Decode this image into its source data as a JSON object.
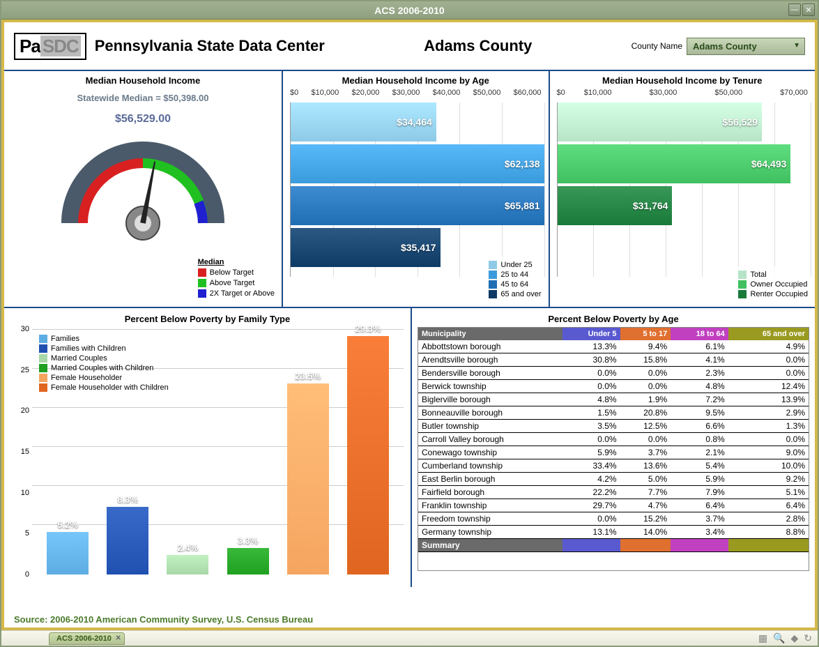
{
  "window": {
    "title": "ACS 2006-2010"
  },
  "header": {
    "logo_pa": "Pa",
    "logo_sdc": "SDC",
    "org_title": "Pennsylvania State Data Center",
    "county_heading": "Adams County",
    "county_label": "County Name",
    "county_selected": "Adams County"
  },
  "gauge": {
    "title": "Median Household Income",
    "subtitle": "Statewide Median = $50,398.00",
    "value_label": "$56,529.00",
    "value": 56529,
    "target": 50398,
    "min": 0,
    "max": 100796,
    "colors": {
      "below": "#d92020",
      "above": "#20c020",
      "double": "#2020d0"
    },
    "legend_title": "Median",
    "legend": [
      {
        "color": "#d92020",
        "label": "Below Target"
      },
      {
        "color": "#20c020",
        "label": "Above Target"
      },
      {
        "color": "#2020d0",
        "label": "2X Target or Above"
      }
    ]
  },
  "income_by_age": {
    "title": "Median Household Income by Age",
    "type": "bar-horizontal",
    "xmax": 60000,
    "xtick_step": 10000,
    "ticks": [
      "$0",
      "$10,000",
      "$20,000",
      "$30,000",
      "$40,000",
      "$50,000",
      "$60,000"
    ],
    "bars": [
      {
        "label": "Under 25",
        "value": 34464,
        "display": "$34,464",
        "color": "#8ecae6"
      },
      {
        "label": "25 to 44",
        "value": 62138,
        "display": "$62,138",
        "color": "#3a9bdc"
      },
      {
        "label": "45 to 64",
        "value": 65881,
        "display": "$65,881",
        "color": "#1f6db3"
      },
      {
        "label": "65 and over",
        "value": 35417,
        "display": "$35,417",
        "color": "#0d3b66"
      }
    ]
  },
  "income_by_tenure": {
    "title": "Median Household Income by Tenure",
    "type": "bar-horizontal",
    "xmax": 70000,
    "xtick_step": 10000,
    "ticks": [
      "$0",
      "$10,000",
      "",
      "$30,000",
      "",
      "$50,000",
      "",
      "$70,000"
    ],
    "bars": [
      {
        "label": "Total",
        "value": 56529,
        "display": "$56,529",
        "color": "#b7e4c7"
      },
      {
        "label": "Owner Occupied",
        "value": 64493,
        "display": "$64,493",
        "color": "#40c060"
      },
      {
        "label": "Renter Occupied",
        "value": 31764,
        "display": "$31,764",
        "color": "#1a7a3a"
      }
    ]
  },
  "poverty_family": {
    "title": "Percent Below Poverty by Family Type",
    "type": "bar-vertical",
    "ymax": 30,
    "ytick_step": 5,
    "bars": [
      {
        "label": "Families",
        "value": 5.2,
        "display": "5.2%",
        "color": "#5dade2"
      },
      {
        "label": "Families with Children",
        "value": 8.3,
        "display": "8.3%",
        "color": "#2050b0"
      },
      {
        "label": "Married Couples",
        "value": 2.4,
        "display": "2.4%",
        "color": "#a8d8a8"
      },
      {
        "label": "Married Couples with Children",
        "value": 3.3,
        "display": "3.3%",
        "color": "#20a020"
      },
      {
        "label": "Female Householder",
        "value": 23.5,
        "display": "23.5%",
        "color": "#f5a560"
      },
      {
        "label": "Female Householder with Children",
        "value": 29.3,
        "display": "29.3%",
        "color": "#e06520"
      }
    ]
  },
  "poverty_age": {
    "title": "Percent Below Poverty by Age",
    "columns": [
      "Municipality",
      "Under 5",
      "5 to 17",
      "18 to 64",
      "65 and over"
    ],
    "header_colors": [
      "#6a6a6a",
      "#5a5ad0",
      "#e07030",
      "#c040c0",
      "#9a9a20"
    ],
    "rows": [
      [
        "Abbottstown borough",
        "13.3%",
        "9.4%",
        "6.1%",
        "4.9%"
      ],
      [
        "Arendtsville borough",
        "30.8%",
        "15.8%",
        "4.1%",
        "0.0%"
      ],
      [
        "Bendersville borough",
        "0.0%",
        "0.0%",
        "2.3%",
        "0.0%"
      ],
      [
        "Berwick township",
        "0.0%",
        "0.0%",
        "4.8%",
        "12.4%"
      ],
      [
        "Biglerville borough",
        "4.8%",
        "1.9%",
        "7.2%",
        "13.9%"
      ],
      [
        "Bonneauville borough",
        "1.5%",
        "20.8%",
        "9.5%",
        "2.9%"
      ],
      [
        "Butler township",
        "3.5%",
        "12.5%",
        "6.6%",
        "1.3%"
      ],
      [
        "Carroll Valley borough",
        "0.0%",
        "0.0%",
        "0.8%",
        "0.0%"
      ],
      [
        "Conewago township",
        "5.9%",
        "3.7%",
        "2.1%",
        "9.0%"
      ],
      [
        "Cumberland township",
        "33.4%",
        "13.6%",
        "5.4%",
        "10.0%"
      ],
      [
        "East Berlin borough",
        "4.2%",
        "5.0%",
        "5.9%",
        "9.2%"
      ],
      [
        "Fairfield borough",
        "22.2%",
        "7.7%",
        "7.9%",
        "5.1%"
      ],
      [
        "Franklin township",
        "29.7%",
        "4.7%",
        "6.4%",
        "6.4%"
      ],
      [
        "Freedom township",
        "0.0%",
        "15.2%",
        "3.7%",
        "2.8%"
      ],
      [
        "Germany township",
        "13.1%",
        "14.0%",
        "3.4%",
        "8.8%"
      ]
    ],
    "summary_label": "Summary",
    "summary_colors": [
      "#6a6a6a",
      "#5a5ad0",
      "#e07030",
      "#c040c0",
      "#9a9a20"
    ]
  },
  "source": "Source: 2006-2010 American Community Survey, U.S. Census Bureau",
  "status_tab": "ACS 2006-2010"
}
